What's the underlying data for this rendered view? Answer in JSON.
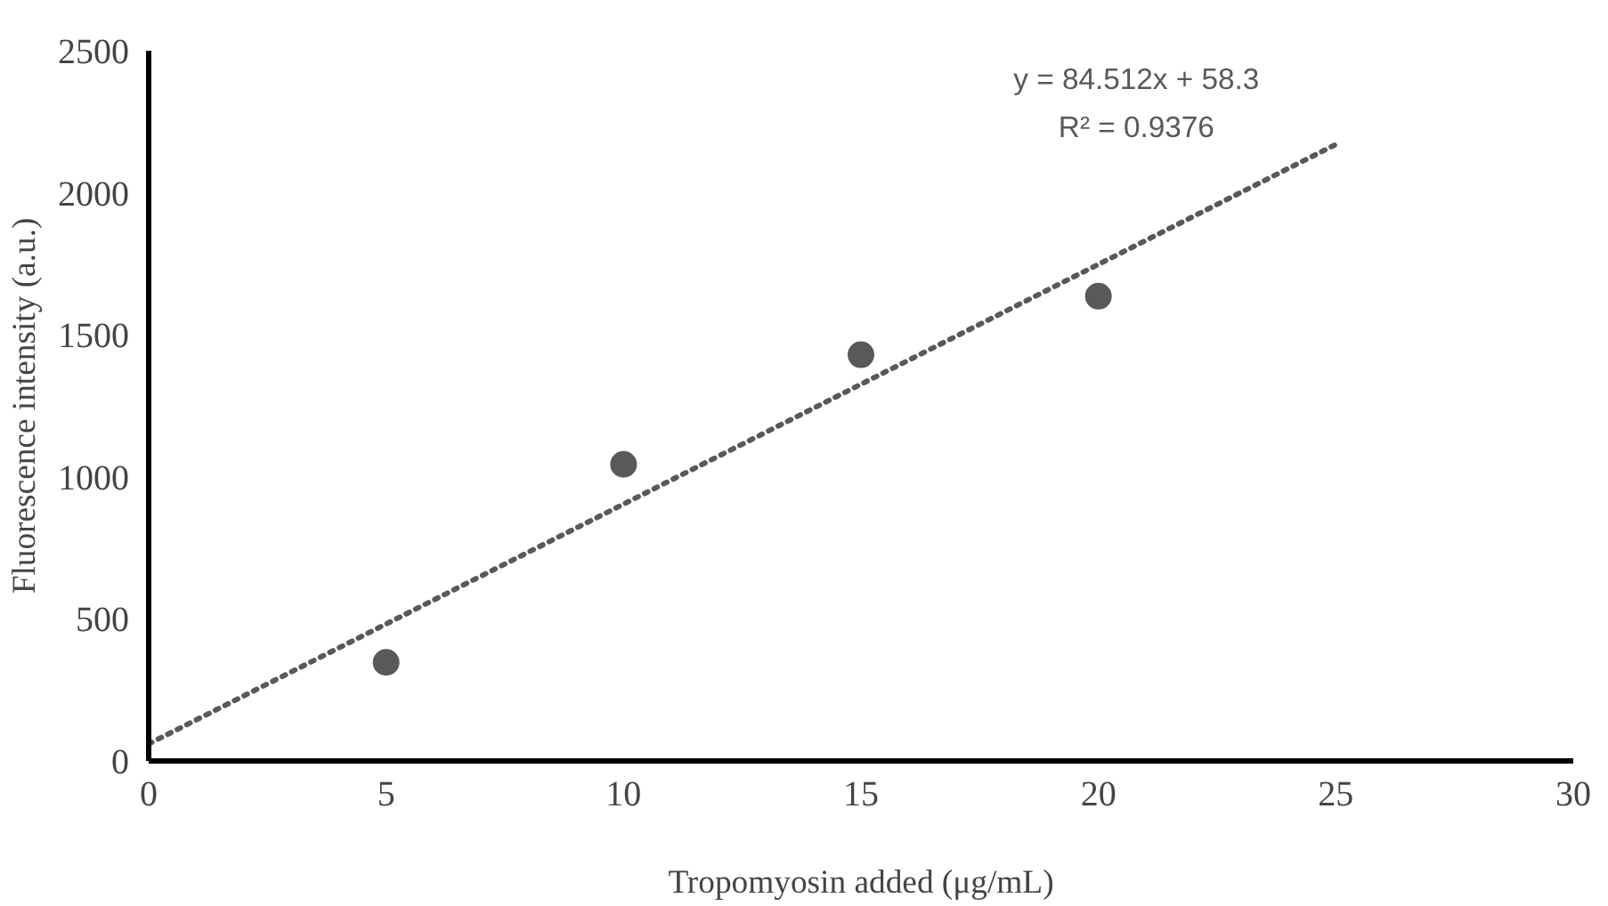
{
  "chart_data": {
    "type": "scatter",
    "xlabel": "Tropomyosin added (μg/mL)",
    "ylabel": "Fluorescence intensity (a.u.)",
    "xlim": [
      0,
      30
    ],
    "xticks": [
      0,
      5,
      10,
      15,
      20,
      25,
      30
    ],
    "ylim": [
      0,
      2500
    ],
    "yticks": [
      0,
      500,
      1000,
      1500,
      2000,
      2500
    ],
    "grid": false,
    "marker": "circle",
    "annotations": [
      "y = 84.512x + 58.3",
      "R² = 0.9376"
    ],
    "series": [
      {
        "color": "#595959",
        "x": [
          5,
          10,
          15,
          20
        ],
        "values": [
          347,
          1044,
          1430,
          1636
        ]
      },
      {
        "type": "line",
        "color": "#595959",
        "line_style": "dotted",
        "marker": "none",
        "x": [
          0,
          25
        ],
        "values": [
          60,
          2170
        ]
      }
    ]
  }
}
